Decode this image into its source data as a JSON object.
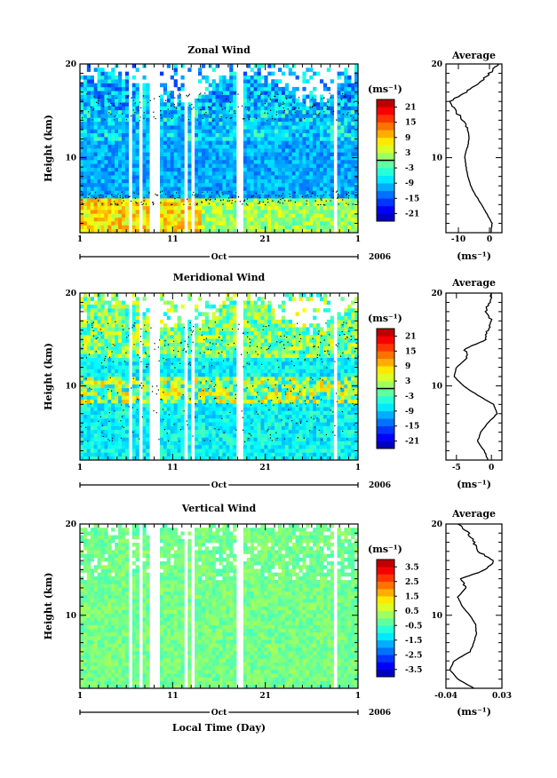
{
  "figure": {
    "xlabel": "Local Time (Day)",
    "month": "Oct",
    "year": "2006",
    "xticks": [
      "1",
      "11",
      "21",
      "1"
    ],
    "yticks": [
      "20",
      "10"
    ],
    "ylabel": "Height (km)"
  },
  "chart_data": [
    {
      "type": "heatmap",
      "title": "Zonal Wind",
      "xlabel": "Oct",
      "ylabel": "Height (km)",
      "ylim": [
        2,
        20
      ],
      "colorbar": {
        "unit": "(ms⁻¹)",
        "ticks": [
          "21",
          "15",
          "9",
          "3",
          "-3",
          "-9",
          "-15",
          "-21"
        ],
        "range": [
          -24,
          24
        ]
      },
      "contour_level": 0,
      "profile": {
        "title": "Average",
        "xlabel": "(ms⁻¹)",
        "xticks": [
          "-10",
          "0"
        ],
        "xlim": [
          -14,
          4
        ],
        "height": [
          2,
          3,
          4,
          5,
          6,
          7,
          8,
          9,
          10,
          11,
          12,
          13,
          14,
          15,
          16,
          17,
          18,
          19,
          20
        ],
        "values": [
          0.5,
          0.8,
          -0.8,
          -2.5,
          -4.5,
          -6,
          -7,
          -7.5,
          -8,
          -7.2,
          -6.5,
          -7,
          -8.5,
          -11,
          -13,
          -7.5,
          -3,
          0,
          3
        ]
      }
    },
    {
      "type": "heatmap",
      "title": "Meridional Wind",
      "xlabel": "Oct",
      "ylabel": "Height (km)",
      "ylim": [
        2,
        20
      ],
      "colorbar": {
        "unit": "(ms⁻¹)",
        "ticks": [
          "21",
          "15",
          "9",
          "3",
          "-3",
          "-9",
          "-15",
          "-21"
        ],
        "range": [
          -24,
          24
        ]
      },
      "contour_level": 0,
      "profile": {
        "title": "Average",
        "xlabel": "(ms⁻¹)",
        "xticks": [
          "-5",
          "0"
        ],
        "xlim": [
          -6.5,
          1.5
        ],
        "height": [
          2,
          3,
          4,
          5,
          6,
          7,
          8,
          9,
          10,
          11,
          12,
          13,
          14,
          15,
          16,
          17,
          18,
          19,
          20
        ],
        "values": [
          -0.5,
          -1,
          -2,
          -1.5,
          -0.5,
          0.8,
          0.3,
          -2,
          -4,
          -5.3,
          -5,
          -3.5,
          -3.8,
          -0.8,
          -0.5,
          0,
          -0.8,
          -0.3,
          0
        ]
      }
    },
    {
      "type": "heatmap",
      "title": "Vertical Wind",
      "xlabel": "Oct",
      "ylabel": "Height (km)",
      "ylim": [
        2,
        20
      ],
      "colorbar": {
        "unit": "(ms⁻¹)",
        "ticks": [
          "3.5",
          "2.5",
          "1.5",
          "0.5",
          "-0.5",
          "-1.5",
          "-2.5",
          "-3.5"
        ],
        "range": [
          -4,
          4
        ]
      },
      "profile": {
        "title": "Average",
        "xlabel": "(ms⁻¹)",
        "xticks": [
          "-0.04",
          "0.03"
        ],
        "xlim": [
          -0.04,
          0.03
        ],
        "height": [
          2,
          3,
          4,
          5,
          6,
          7,
          8,
          9,
          10,
          11,
          12,
          13,
          14,
          15,
          16,
          17,
          18,
          19,
          20
        ],
        "values": [
          -0.005,
          -0.025,
          -0.035,
          -0.03,
          -0.01,
          -0.005,
          -0.002,
          -0.003,
          -0.01,
          -0.02,
          -0.025,
          -0.015,
          -0.022,
          0.01,
          0.02,
          0,
          -0.005,
          -0.012,
          -0.025
        ]
      }
    }
  ]
}
